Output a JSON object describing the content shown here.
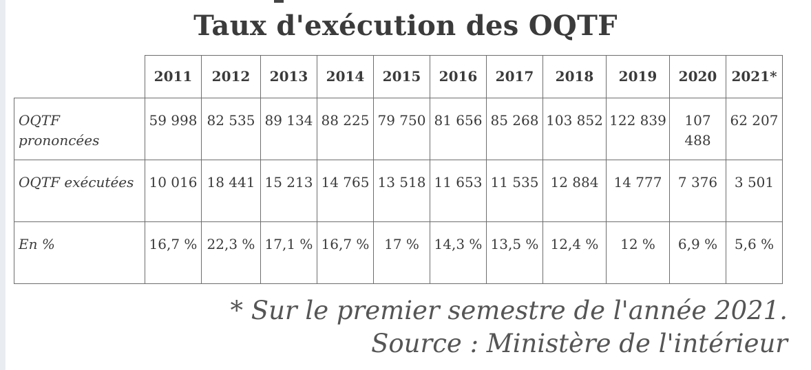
{
  "title": "Taux d'exécution des OQTF",
  "chart_data": {
    "type": "table",
    "title": "Taux d'exécution des OQTF",
    "columns": [
      "",
      "2011",
      "2012",
      "2013",
      "2014",
      "2015",
      "2016",
      "2017",
      "2018",
      "2019",
      "2020",
      "2021*"
    ],
    "rows": [
      {
        "label": "OQTF prononcées",
        "cells": [
          "59 998",
          "82 535",
          "89 134",
          "88 225",
          "79 750",
          "81 656",
          "85 268",
          "103 852",
          "122 839",
          "107 488",
          "62 207"
        ]
      },
      {
        "label": "OQTF exécutées",
        "cells": [
          "10 016",
          "18 441",
          "15 213",
          "14 765",
          "13 518",
          "11 653",
          "11 535",
          "12 884",
          "14 777",
          "7 376",
          "3 501"
        ]
      },
      {
        "label": "En %",
        "cells": [
          "16,7 %",
          "22,3 %",
          "17,1 %",
          "16,7 %",
          "17 %",
          "14,3 %",
          "13,5 %",
          "12,4 %",
          "12 %",
          "6,9 %",
          "5,6 %"
        ]
      }
    ]
  },
  "footnote": {
    "note": "* Sur le premier semestre de l'année 2021.",
    "source": "Source : Ministère de l'intérieur"
  }
}
